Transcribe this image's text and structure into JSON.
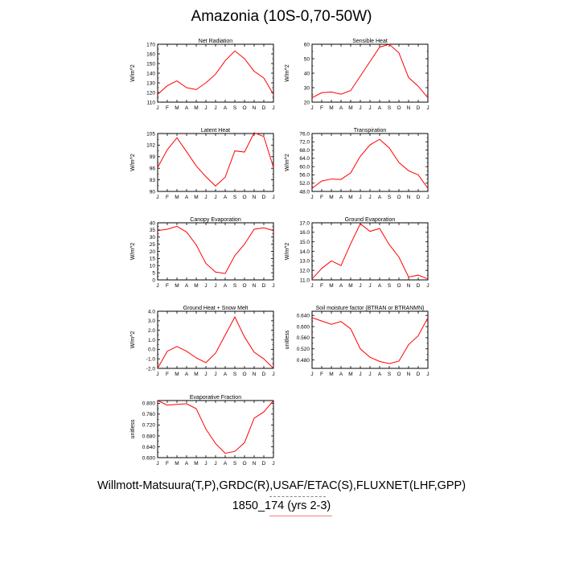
{
  "title": "Amazonia (10S-0,70-50W)",
  "footer": {
    "line1": "Willmott-Matsuura(T,P),GRDC(R),USAF/ETAC(S),FLUXNET(LHF,GPP)",
    "line2": "1850_174 (yrs 2-3)"
  },
  "colors": {
    "series": "#ff0000",
    "axis": "#000000"
  },
  "chart_data": [
    {
      "type": "line",
      "title": "Net Radiation",
      "ylabel": "W/m^2",
      "categories": [
        "J",
        "F",
        "M",
        "A",
        "M",
        "J",
        "J",
        "A",
        "S",
        "O",
        "N",
        "D",
        "J"
      ],
      "ylim": [
        110,
        170
      ],
      "yticks": [
        110,
        120,
        130,
        140,
        150,
        160,
        170
      ],
      "ytick_labels": [
        "110",
        "120",
        "130",
        "140",
        "150",
        "160",
        "170"
      ],
      "values": [
        118,
        127,
        132,
        125,
        123,
        130,
        139,
        153,
        163,
        155,
        142,
        135,
        118
      ]
    },
    {
      "type": "line",
      "title": "Sensible Heat",
      "ylabel": "W/m^2",
      "categories": [
        "J",
        "F",
        "M",
        "A",
        "M",
        "J",
        "J",
        "A",
        "S",
        "O",
        "N",
        "D",
        "J"
      ],
      "ylim": [
        20,
        60
      ],
      "yticks": [
        20,
        30,
        40,
        50,
        60
      ],
      "ytick_labels": [
        "20",
        "30",
        "40",
        "50",
        "60"
      ],
      "values": [
        23,
        26.5,
        27,
        25.5,
        28,
        38,
        48,
        58,
        60,
        54,
        37,
        31,
        23
      ]
    },
    {
      "type": "line",
      "title": "Latent Heat",
      "ylabel": "W/m^2",
      "categories": [
        "J",
        "F",
        "M",
        "A",
        "M",
        "J",
        "J",
        "A",
        "S",
        "O",
        "N",
        "D",
        "J"
      ],
      "ylim": [
        90,
        105
      ],
      "yticks": [
        90,
        93,
        96,
        99,
        102,
        105
      ],
      "ytick_labels": [
        "90",
        "93",
        "96",
        "99",
        "102",
        "105"
      ],
      "values": [
        96.2,
        100.8,
        103.9,
        100.3,
        96.6,
        93.8,
        91.4,
        93.7,
        100.5,
        100.2,
        105.2,
        104.2,
        96.2
      ]
    },
    {
      "type": "line",
      "title": "Transpiration",
      "ylabel": "W/m^2",
      "categories": [
        "J",
        "F",
        "M",
        "A",
        "M",
        "J",
        "J",
        "A",
        "S",
        "O",
        "N",
        "D",
        "J"
      ],
      "ylim": [
        48,
        76
      ],
      "yticks": [
        48,
        52,
        56,
        60,
        64,
        68,
        72,
        76
      ],
      "ytick_labels": [
        "48.0",
        "52.0",
        "56.0",
        "60.0",
        "64.0",
        "68.0",
        "72.0",
        "76.0"
      ],
      "values": [
        49.5,
        53,
        54,
        53.8,
        57,
        65,
        70.5,
        73.2,
        69,
        62,
        58,
        56,
        49.5
      ]
    },
    {
      "type": "line",
      "title": "Canopy Evaporation",
      "ylabel": "W/m^2",
      "categories": [
        "J",
        "F",
        "M",
        "A",
        "M",
        "J",
        "J",
        "A",
        "S",
        "O",
        "N",
        "D",
        "J"
      ],
      "ylim": [
        0,
        40
      ],
      "yticks": [
        0,
        5,
        10,
        15,
        20,
        25,
        30,
        35,
        40
      ],
      "ytick_labels": [
        "0",
        "5",
        "10",
        "15",
        "20",
        "25",
        "30",
        "35",
        "40"
      ],
      "values": [
        34.5,
        35.5,
        37.5,
        33.5,
        24.5,
        11.5,
        5.5,
        4.5,
        17,
        25,
        35.5,
        36.5,
        34.5
      ]
    },
    {
      "type": "line",
      "title": "Ground Evaporation",
      "ylabel": "W/m^2",
      "categories": [
        "J",
        "F",
        "M",
        "A",
        "M",
        "J",
        "J",
        "A",
        "S",
        "O",
        "N",
        "D",
        "J"
      ],
      "ylim": [
        11,
        17
      ],
      "yticks": [
        11,
        12,
        13,
        14,
        15,
        16,
        17
      ],
      "ytick_labels": [
        "11.0",
        "12.0",
        "13.0",
        "14.0",
        "15.0",
        "16.0",
        "17.0"
      ],
      "values": [
        11.1,
        12.2,
        13,
        12.5,
        14.8,
        16.9,
        16.1,
        16.4,
        14.7,
        13.4,
        11.3,
        11.5,
        11.1
      ]
    },
    {
      "type": "line",
      "title": "Ground Heat + Snow Melt",
      "ylabel": "W/m^2",
      "categories": [
        "J",
        "F",
        "M",
        "A",
        "M",
        "J",
        "J",
        "A",
        "S",
        "O",
        "N",
        "D",
        "J"
      ],
      "ylim": [
        -2,
        4
      ],
      "yticks": [
        -2,
        -1,
        0,
        1,
        2,
        3,
        4
      ],
      "ytick_labels": [
        "-2.0",
        "-1.0",
        "0.0",
        "1.0",
        "2.0",
        "3.0",
        "4.0"
      ],
      "values": [
        -2,
        -0.2,
        0.3,
        -0.2,
        -0.9,
        -1.4,
        -0.4,
        1.5,
        3.4,
        1.3,
        -0.3,
        -1,
        -2
      ]
    },
    {
      "type": "line",
      "title": "Soil moisture factor (BTRAN or BTRANMN)",
      "ylabel": "unitless",
      "categories": [
        "J",
        "F",
        "M",
        "A",
        "M",
        "J",
        "J",
        "A",
        "S",
        "O",
        "N",
        "D",
        "J"
      ],
      "ylim": [
        0.45,
        0.655
      ],
      "yticks": [
        0.48,
        0.52,
        0.56,
        0.6,
        0.64
      ],
      "ytick_labels": [
        "0.480",
        "0.520",
        "0.560",
        "0.600",
        "0.640"
      ],
      "values": [
        0.632,
        0.62,
        0.608,
        0.618,
        0.592,
        0.52,
        0.49,
        0.475,
        0.467,
        0.476,
        0.535,
        0.567,
        0.632
      ]
    },
    {
      "type": "line",
      "title": "Evaporative Fraction",
      "ylabel": "unitless",
      "categories": [
        "J",
        "F",
        "M",
        "A",
        "M",
        "J",
        "J",
        "A",
        "S",
        "O",
        "N",
        "D",
        "J"
      ],
      "ylim": [
        0.6,
        0.81
      ],
      "yticks": [
        0.6,
        0.64,
        0.68,
        0.72,
        0.76,
        0.8
      ],
      "ytick_labels": [
        "0.600",
        "0.640",
        "0.680",
        "0.720",
        "0.760",
        "0.800"
      ],
      "values": [
        0.81,
        0.793,
        0.796,
        0.798,
        0.78,
        0.705,
        0.652,
        0.616,
        0.623,
        0.655,
        0.745,
        0.768,
        0.81
      ]
    }
  ]
}
